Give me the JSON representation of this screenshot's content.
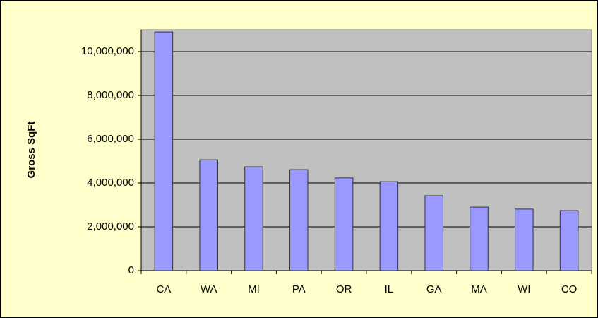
{
  "chart_data": {
    "type": "bar",
    "y_label": "Gross SqFt",
    "categories": [
      "CA",
      "WA",
      "MI",
      "PA",
      "OR",
      "IL",
      "GA",
      "MA",
      "WI",
      "CO"
    ],
    "values": [
      10900000,
      5060000,
      4740000,
      4610000,
      4230000,
      4060000,
      3420000,
      2900000,
      2810000,
      2740000
    ],
    "color": "#9999ff",
    "ylim": [
      0,
      11000000
    ],
    "yticks": [
      0,
      {
        "value": 2000000,
        "label": "2,000,000"
      },
      {
        "value": 4000000,
        "label": "4,000,000"
      },
      {
        "value": 6000000,
        "label": "6,000,000"
      },
      {
        "value": 8000000,
        "label": "8,000,000"
      },
      {
        "value": 10000000,
        "label": "10,000,000"
      }
    ],
    "grid": true
  }
}
